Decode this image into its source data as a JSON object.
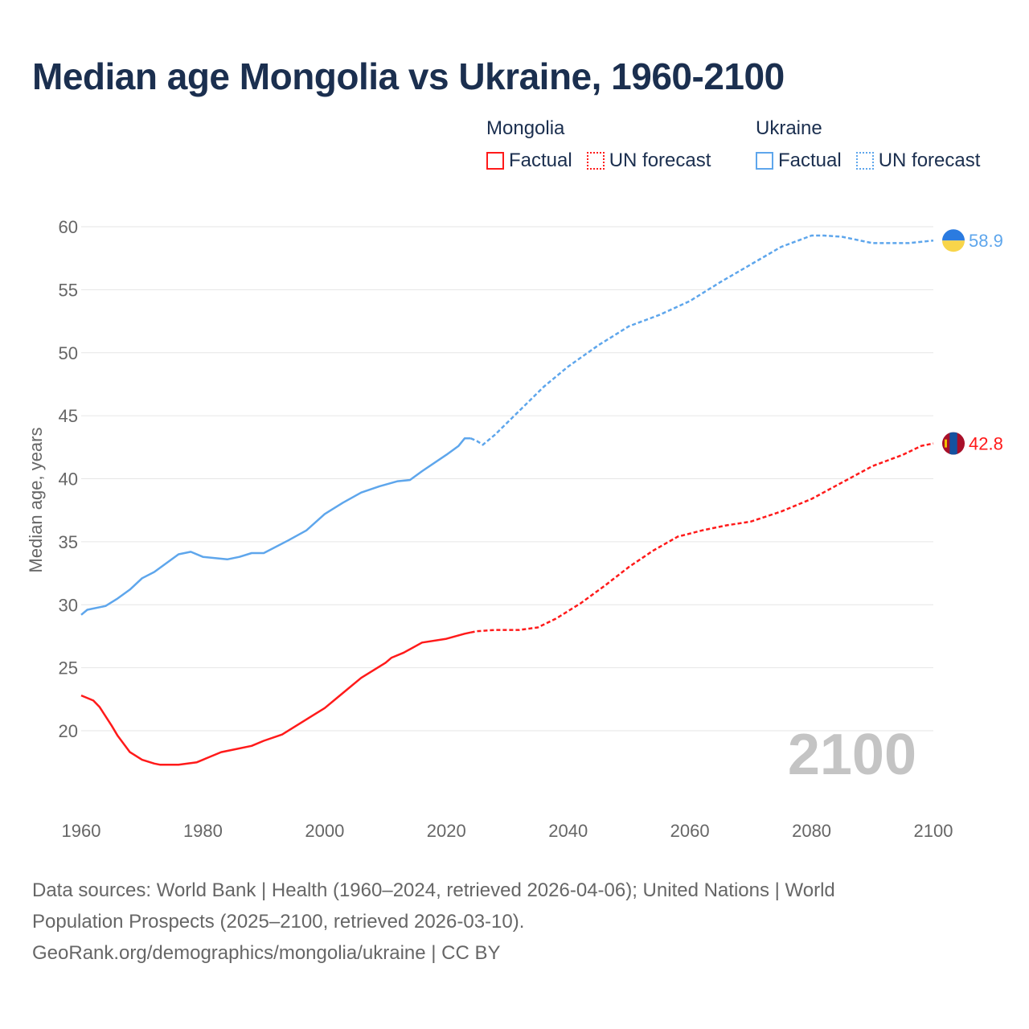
{
  "title": "Median age Mongolia vs Ukraine, 1960-2100",
  "legend": {
    "groups": [
      {
        "name": "Mongolia",
        "color": "#ff1a1a",
        "items": [
          "Factual",
          "UN forecast"
        ]
      },
      {
        "name": "Ukraine",
        "color": "#5ea6ec",
        "items": [
          "Factual",
          "UN forecast"
        ]
      }
    ]
  },
  "year_watermark": "2100",
  "footer": {
    "line1": "Data sources: World Bank | Health (1960–2024, retrieved 2026-04-06); United Nations | World",
    "line2": "Population Prospects (2025–2100, retrieved 2026-03-10).",
    "line3": "GeoRank.org/demographics/mongolia/ukraine | CC BY"
  },
  "chart_data": {
    "type": "line",
    "title": "Median age Mongolia vs Ukraine, 1960-2100",
    "xlabel": "",
    "ylabel": "Median age, years",
    "xlim": [
      1960,
      2100
    ],
    "ylim": [
      15,
      60
    ],
    "xticks": [
      "1960",
      "1980",
      "2000",
      "2020",
      "2040",
      "2060",
      "2080",
      "2100"
    ],
    "yticks": [
      "20",
      "25",
      "30",
      "35",
      "40",
      "45",
      "50",
      "55",
      "60"
    ],
    "grid": true,
    "legend_position": "top-right",
    "series": [
      {
        "name": "Mongolia",
        "color": "#ff1a1a",
        "end_label": "42.8",
        "factual": {
          "x": [
            1960,
            1962,
            1963,
            1965,
            1966,
            1968,
            1970,
            1972,
            1973,
            1976,
            1979,
            1981,
            1983,
            1985,
            1988,
            1990,
            1993,
            1995,
            1997,
            2000,
            2003,
            2006,
            2010,
            2011,
            2013,
            2016,
            2020,
            2023,
            2024
          ],
          "y": [
            22.8,
            22.4,
            21.9,
            20.4,
            19.6,
            18.3,
            17.7,
            17.4,
            17.3,
            17.3,
            17.5,
            17.9,
            18.3,
            18.5,
            18.8,
            19.2,
            19.7,
            20.3,
            20.9,
            21.8,
            23.0,
            24.2,
            25.4,
            25.8,
            26.2,
            27.0,
            27.3,
            27.7,
            27.8
          ]
        },
        "forecast": {
          "x": [
            2024,
            2025,
            2028,
            2032,
            2035,
            2038,
            2042,
            2046,
            2050,
            2054,
            2058,
            2062,
            2066,
            2070,
            2075,
            2080,
            2085,
            2090,
            2095,
            2098,
            2100
          ],
          "y": [
            27.8,
            27.9,
            28.0,
            28.0,
            28.2,
            28.9,
            30.1,
            31.5,
            33.0,
            34.3,
            35.4,
            35.9,
            36.3,
            36.6,
            37.4,
            38.4,
            39.7,
            41.0,
            41.9,
            42.6,
            42.8
          ]
        }
      },
      {
        "name": "Ukraine",
        "color": "#5ea6ec",
        "end_label": "58.9",
        "factual": {
          "x": [
            1960,
            1961,
            1964,
            1966,
            1968,
            1970,
            1972,
            1976,
            1978,
            1980,
            1982,
            1984,
            1986,
            1988,
            1990,
            1994,
            1997,
            2000,
            2003,
            2006,
            2009,
            2012,
            2014,
            2016,
            2020,
            2022,
            2023,
            2024
          ],
          "y": [
            29.2,
            29.6,
            29.9,
            30.5,
            31.2,
            32.1,
            32.6,
            34.0,
            34.2,
            33.8,
            33.7,
            33.6,
            33.8,
            34.1,
            34.1,
            35.1,
            35.9,
            37.2,
            38.1,
            38.9,
            39.4,
            39.8,
            39.9,
            40.6,
            41.9,
            42.6,
            43.2,
            43.2
          ]
        },
        "forecast": {
          "x": [
            2024,
            2025,
            2026,
            2028,
            2032,
            2036,
            2040,
            2045,
            2050,
            2055,
            2060,
            2065,
            2070,
            2075,
            2080,
            2082,
            2085,
            2090,
            2096,
            2100
          ],
          "y": [
            43.2,
            43.0,
            42.7,
            43.5,
            45.4,
            47.3,
            48.9,
            50.6,
            52.1,
            53.0,
            54.1,
            55.6,
            57.0,
            58.4,
            59.3,
            59.3,
            59.2,
            58.7,
            58.7,
            58.9
          ]
        }
      }
    ]
  }
}
